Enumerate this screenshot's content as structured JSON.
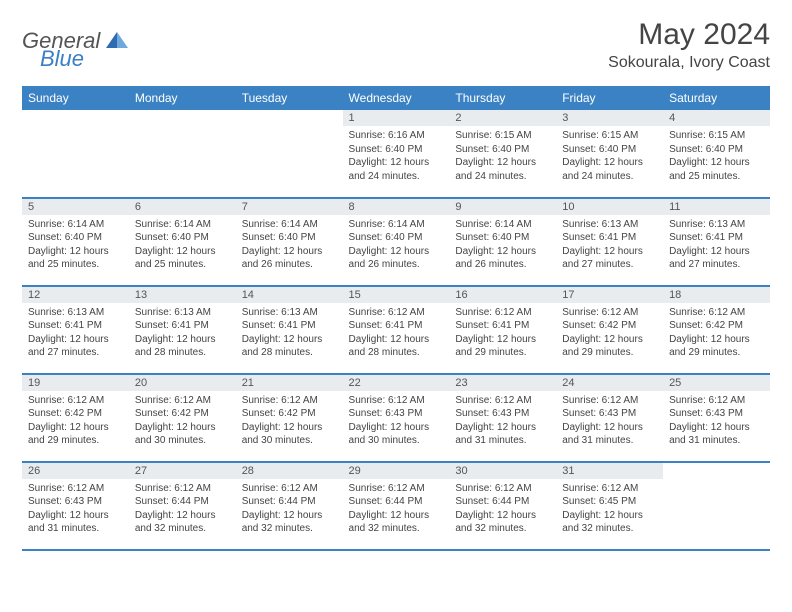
{
  "logo": {
    "general": "General",
    "blue": "Blue"
  },
  "title": "May 2024",
  "location": "Sokourala, Ivory Coast",
  "headers": [
    "Sunday",
    "Monday",
    "Tuesday",
    "Wednesday",
    "Thursday",
    "Friday",
    "Saturday"
  ],
  "colors": {
    "header_bg": "#3b82c4",
    "daynum_bg": "#e8ecef",
    "border": "#3b82c4"
  },
  "weeks": [
    [
      null,
      null,
      null,
      {
        "n": "1",
        "sr": "6:16 AM",
        "ss": "6:40 PM",
        "dl": "12 hours and 24 minutes."
      },
      {
        "n": "2",
        "sr": "6:15 AM",
        "ss": "6:40 PM",
        "dl": "12 hours and 24 minutes."
      },
      {
        "n": "3",
        "sr": "6:15 AM",
        "ss": "6:40 PM",
        "dl": "12 hours and 24 minutes."
      },
      {
        "n": "4",
        "sr": "6:15 AM",
        "ss": "6:40 PM",
        "dl": "12 hours and 25 minutes."
      }
    ],
    [
      {
        "n": "5",
        "sr": "6:14 AM",
        "ss": "6:40 PM",
        "dl": "12 hours and 25 minutes."
      },
      {
        "n": "6",
        "sr": "6:14 AM",
        "ss": "6:40 PM",
        "dl": "12 hours and 25 minutes."
      },
      {
        "n": "7",
        "sr": "6:14 AM",
        "ss": "6:40 PM",
        "dl": "12 hours and 26 minutes."
      },
      {
        "n": "8",
        "sr": "6:14 AM",
        "ss": "6:40 PM",
        "dl": "12 hours and 26 minutes."
      },
      {
        "n": "9",
        "sr": "6:14 AM",
        "ss": "6:40 PM",
        "dl": "12 hours and 26 minutes."
      },
      {
        "n": "10",
        "sr": "6:13 AM",
        "ss": "6:41 PM",
        "dl": "12 hours and 27 minutes."
      },
      {
        "n": "11",
        "sr": "6:13 AM",
        "ss": "6:41 PM",
        "dl": "12 hours and 27 minutes."
      }
    ],
    [
      {
        "n": "12",
        "sr": "6:13 AM",
        "ss": "6:41 PM",
        "dl": "12 hours and 27 minutes."
      },
      {
        "n": "13",
        "sr": "6:13 AM",
        "ss": "6:41 PM",
        "dl": "12 hours and 28 minutes."
      },
      {
        "n": "14",
        "sr": "6:13 AM",
        "ss": "6:41 PM",
        "dl": "12 hours and 28 minutes."
      },
      {
        "n": "15",
        "sr": "6:12 AM",
        "ss": "6:41 PM",
        "dl": "12 hours and 28 minutes."
      },
      {
        "n": "16",
        "sr": "6:12 AM",
        "ss": "6:41 PM",
        "dl": "12 hours and 29 minutes."
      },
      {
        "n": "17",
        "sr": "6:12 AM",
        "ss": "6:42 PM",
        "dl": "12 hours and 29 minutes."
      },
      {
        "n": "18",
        "sr": "6:12 AM",
        "ss": "6:42 PM",
        "dl": "12 hours and 29 minutes."
      }
    ],
    [
      {
        "n": "19",
        "sr": "6:12 AM",
        "ss": "6:42 PM",
        "dl": "12 hours and 29 minutes."
      },
      {
        "n": "20",
        "sr": "6:12 AM",
        "ss": "6:42 PM",
        "dl": "12 hours and 30 minutes."
      },
      {
        "n": "21",
        "sr": "6:12 AM",
        "ss": "6:42 PM",
        "dl": "12 hours and 30 minutes."
      },
      {
        "n": "22",
        "sr": "6:12 AM",
        "ss": "6:43 PM",
        "dl": "12 hours and 30 minutes."
      },
      {
        "n": "23",
        "sr": "6:12 AM",
        "ss": "6:43 PM",
        "dl": "12 hours and 31 minutes."
      },
      {
        "n": "24",
        "sr": "6:12 AM",
        "ss": "6:43 PM",
        "dl": "12 hours and 31 minutes."
      },
      {
        "n": "25",
        "sr": "6:12 AM",
        "ss": "6:43 PM",
        "dl": "12 hours and 31 minutes."
      }
    ],
    [
      {
        "n": "26",
        "sr": "6:12 AM",
        "ss": "6:43 PM",
        "dl": "12 hours and 31 minutes."
      },
      {
        "n": "27",
        "sr": "6:12 AM",
        "ss": "6:44 PM",
        "dl": "12 hours and 32 minutes."
      },
      {
        "n": "28",
        "sr": "6:12 AM",
        "ss": "6:44 PM",
        "dl": "12 hours and 32 minutes."
      },
      {
        "n": "29",
        "sr": "6:12 AM",
        "ss": "6:44 PM",
        "dl": "12 hours and 32 minutes."
      },
      {
        "n": "30",
        "sr": "6:12 AM",
        "ss": "6:44 PM",
        "dl": "12 hours and 32 minutes."
      },
      {
        "n": "31",
        "sr": "6:12 AM",
        "ss": "6:45 PM",
        "dl": "12 hours and 32 minutes."
      },
      null
    ]
  ],
  "labels": {
    "sunrise": "Sunrise:",
    "sunset": "Sunset:",
    "daylight": "Daylight:"
  }
}
